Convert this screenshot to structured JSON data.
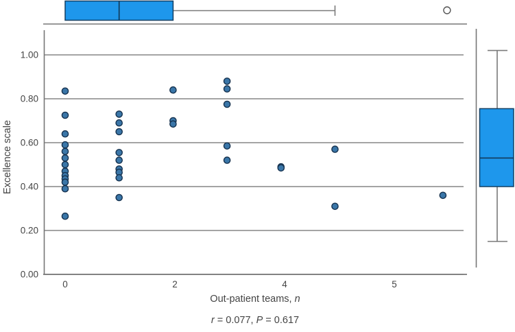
{
  "figure": {
    "ylabel": "Excellence scale",
    "xlabel_parts": [
      {
        "text": "Out-patient teams, ",
        "italic": false
      },
      {
        "text": "n",
        "italic": true
      }
    ],
    "annotation_parts": [
      {
        "text": "r",
        "italic": true
      },
      {
        "text": " = 0.077, ",
        "italic": false
      },
      {
        "text": "P",
        "italic": true
      },
      {
        "text": " = 0.617",
        "italic": false
      }
    ]
  },
  "chart_data": {
    "type": "scatter",
    "title": "",
    "xlabel": "Out-patient teams, n",
    "ylabel": "Excellence scale",
    "x_tick_labels": [
      "0",
      "2",
      "4",
      "5"
    ],
    "y_tick_labels": [
      "1.00",
      "0.80",
      "0.60",
      "0.40",
      "0.20",
      "0.00"
    ],
    "y_tick_values": [
      1.0,
      0.8,
      0.6,
      0.4,
      0.2,
      0.0
    ],
    "xlim": [
      -0.4,
      7.45
    ],
    "ylim": [
      0.0,
      1.0
    ],
    "grid": true,
    "legend": "none",
    "correlation": {
      "r": "0.077",
      "P": "0.617"
    },
    "points": [
      {
        "x": 0,
        "y": 0.835
      },
      {
        "x": 0,
        "y": 0.725
      },
      {
        "x": 0,
        "y": 0.64
      },
      {
        "x": 0,
        "y": 0.59
      },
      {
        "x": 0,
        "y": 0.56
      },
      {
        "x": 0,
        "y": 0.53
      },
      {
        "x": 0,
        "y": 0.5
      },
      {
        "x": 0,
        "y": 0.47
      },
      {
        "x": 0,
        "y": 0.45
      },
      {
        "x": 0,
        "y": 0.435
      },
      {
        "x": 0,
        "y": 0.42
      },
      {
        "x": 0,
        "y": 0.39
      },
      {
        "x": 0,
        "y": 0.265
      },
      {
        "x": 1,
        "y": 0.73
      },
      {
        "x": 1,
        "y": 0.69
      },
      {
        "x": 1,
        "y": 0.65
      },
      {
        "x": 1,
        "y": 0.555
      },
      {
        "x": 1,
        "y": 0.52
      },
      {
        "x": 1,
        "y": 0.48
      },
      {
        "x": 1,
        "y": 0.465
      },
      {
        "x": 1,
        "y": 0.44
      },
      {
        "x": 1,
        "y": 0.35
      },
      {
        "x": 2,
        "y": 0.84
      },
      {
        "x": 2,
        "y": 0.7
      },
      {
        "x": 2,
        "y": 0.685
      },
      {
        "x": 3,
        "y": 0.88
      },
      {
        "x": 3,
        "y": 0.845
      },
      {
        "x": 3,
        "y": 0.775
      },
      {
        "x": 3,
        "y": 0.585
      },
      {
        "x": 3,
        "y": 0.52
      },
      {
        "x": 4,
        "y": 0.49
      },
      {
        "x": 4,
        "y": 0.485
      },
      {
        "x": 5,
        "y": 0.57
      },
      {
        "x": 5,
        "y": 0.31
      },
      {
        "x": 7,
        "y": 0.36
      }
    ],
    "top_boxplot": {
      "orientation": "horizontal",
      "variable": "Out-patient teams, n",
      "whisker_low": 0,
      "q1": 0,
      "median": 1,
      "q3": 2,
      "whisker_high": 5,
      "outliers": [
        7
      ]
    },
    "right_boxplot": {
      "orientation": "vertical",
      "variable": "Excellence scale",
      "whisker_low": 0.15,
      "q1": 0.4,
      "median": 0.53,
      "q3": 0.755,
      "whisker_high": 1.02,
      "outliers": []
    },
    "colors": {
      "box_fill": "#1e97ec",
      "box_border": "#123f63",
      "point_fill": "#3a76a8",
      "point_border": "#16324f",
      "grid": "#6e6e6e",
      "axis": "#767676",
      "whisker": "#7a7a7a",
      "outlier_stroke": "#555555",
      "text": "#444444"
    }
  }
}
